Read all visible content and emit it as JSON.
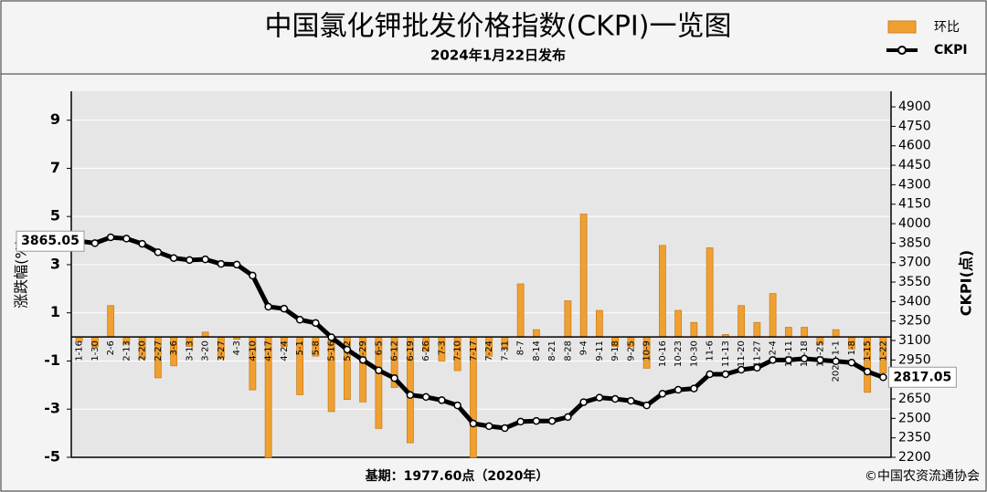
{
  "chart_data": {
    "type": "bar_line",
    "title": "中国氯化钾批发价格指数(CKPI)一览图",
    "subtitle": "2024年1月22日发布",
    "y_label": "涨跌幅(%)",
    "y2_label": "CKPI(点)",
    "footer_left": "基期：1977.60点（2020年）",
    "footer_right": "©中国农资流通协会",
    "categories": [
      "1-16",
      "1-30",
      "2-6",
      "2-13",
      "2-20",
      "2-27",
      "3-6",
      "3-13",
      "3-20",
      "3-27",
      "4-3",
      "4-10",
      "4-17",
      "4-24",
      "5-1",
      "5-8",
      "5-16",
      "5-22",
      "5-29",
      "6-5",
      "6-12",
      "6-19",
      "6-26",
      "7-3",
      "7-10",
      "7-17",
      "7-24",
      "7-31",
      "8-7",
      "8-14",
      "8-21",
      "8-28",
      "9-4",
      "9-11",
      "9-18",
      "9-25",
      "10-9",
      "10-16",
      "10-23",
      "10-30",
      "11-6",
      "11-13",
      "11-20",
      "11-27",
      "12-4",
      "12-11",
      "12-18",
      "12-25",
      "2024-1-1",
      "1-8",
      "1-15",
      "1-22"
    ],
    "series": [
      {
        "name": "环比",
        "type": "bar",
        "color": "#f0a030",
        "values": [
          -0.2,
          -0.4,
          1.3,
          -0.3,
          -0.9,
          -1.7,
          -1.2,
          -0.4,
          0.2,
          -0.9,
          -0.1,
          -2.2,
          -5.0,
          -0.4,
          -2.4,
          -0.8,
          -3.1,
          -2.6,
          -2.7,
          -3.8,
          -2.1,
          -4.4,
          -0.6,
          -1.0,
          -1.4,
          -5.0,
          -0.8,
          -0.5,
          2.2,
          0.3,
          0.0,
          1.5,
          5.1,
          1.1,
          -0.4,
          -0.4,
          -1.3,
          3.8,
          1.1,
          0.6,
          3.7,
          0.1,
          1.3,
          0.6,
          1.8,
          0.4,
          0.4,
          -0.3,
          0.3,
          -0.5,
          -2.3,
          -1.5
        ]
      },
      {
        "name": "CKPI",
        "type": "line",
        "axis": "y2",
        "color": "#000000",
        "values": [
          3865.05,
          3850,
          3895,
          3885,
          3845,
          3780,
          3735,
          3720,
          3725,
          3690,
          3685,
          3600,
          3360,
          3345,
          3260,
          3235,
          3125,
          3030,
          2950,
          2870,
          2810,
          2680,
          2665,
          2640,
          2600,
          2460,
          2440,
          2425,
          2475,
          2480,
          2480,
          2510,
          2625,
          2660,
          2650,
          2635,
          2600,
          2690,
          2720,
          2730,
          2840,
          2840,
          2875,
          2890,
          2950,
          2950,
          2960,
          2950,
          2940,
          2930,
          2860,
          2817.05
        ]
      }
    ],
    "ylim": [
      -5,
      10.2
    ],
    "yticks": [
      -5,
      -3,
      -1,
      1,
      3,
      5,
      7,
      9
    ],
    "y2lim": [
      2200,
      5020
    ],
    "y2ticks": [
      2200,
      2350,
      2500,
      2650,
      2800,
      2950,
      3100,
      3250,
      3400,
      3550,
      3700,
      3850,
      4000,
      4150,
      4300,
      4450,
      4600,
      4750,
      4900
    ],
    "grid": true
  }
}
